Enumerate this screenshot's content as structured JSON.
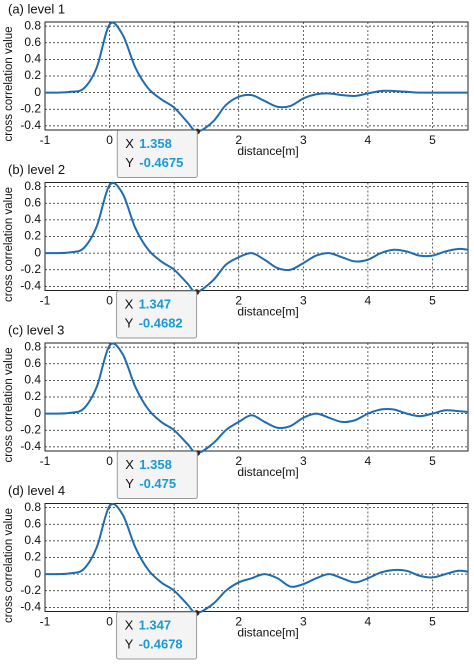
{
  "chart_data": [
    {
      "type": "line",
      "title": "(a) level 1",
      "y_label": "cross correlation value",
      "x_label": "distance[m]",
      "xlim": [
        -1,
        5.55
      ],
      "ylim": [
        -0.45,
        0.85
      ],
      "xticks": [
        -1,
        0,
        1,
        2,
        3,
        4,
        5
      ],
      "yticks": [
        -0.4,
        -0.2,
        0,
        0.2,
        0.4,
        0.6,
        0.8
      ],
      "grid": true,
      "series": [
        {
          "color": "#1f6db0",
          "x": [
            -1,
            -0.8,
            -0.6,
            -0.4,
            -0.2,
            0,
            0.2,
            0.4,
            0.6,
            0.8,
            1.0,
            1.2,
            1.358,
            1.6,
            1.8,
            2.0,
            2.2,
            2.4,
            2.6,
            2.8,
            3.0,
            3.2,
            3.4,
            3.6,
            3.8,
            4.0,
            4.2,
            4.4,
            4.6,
            4.8,
            5.0,
            5.2,
            5.4,
            5.55
          ],
          "values": [
            0,
            0,
            0.01,
            0.05,
            0.3,
            0.82,
            0.7,
            0.3,
            0.05,
            -0.08,
            -0.18,
            -0.35,
            -0.4675,
            -0.35,
            -0.15,
            -0.05,
            -0.03,
            -0.1,
            -0.17,
            -0.16,
            -0.07,
            -0.02,
            -0.01,
            -0.03,
            -0.04,
            -0.01,
            0.02,
            0.02,
            0.01,
            0,
            0,
            0,
            0,
            0
          ]
        }
      ],
      "datatip": {
        "x_label": "X",
        "x": 1.358,
        "y_label": "Y",
        "y": -0.4675,
        "color": "#1a9ad6"
      }
    },
    {
      "type": "line",
      "title": "(b) level 2",
      "y_label": "cross correlation value",
      "x_label": "distance[m]",
      "xlim": [
        -1,
        5.55
      ],
      "ylim": [
        -0.45,
        0.85
      ],
      "xticks": [
        -1,
        0,
        1,
        2,
        3,
        4,
        5
      ],
      "yticks": [
        -0.4,
        -0.2,
        0,
        0.2,
        0.4,
        0.6,
        0.8
      ],
      "grid": true,
      "series": [
        {
          "color": "#1f6db0",
          "x": [
            -1,
            -0.8,
            -0.6,
            -0.4,
            -0.2,
            0,
            0.2,
            0.4,
            0.6,
            0.8,
            1.0,
            1.2,
            1.347,
            1.6,
            1.8,
            2.0,
            2.2,
            2.4,
            2.6,
            2.8,
            3.0,
            3.2,
            3.4,
            3.6,
            3.8,
            4.0,
            4.2,
            4.4,
            4.6,
            4.8,
            5.0,
            5.2,
            5.4,
            5.55
          ],
          "values": [
            0,
            0,
            0.01,
            0.06,
            0.32,
            0.82,
            0.72,
            0.3,
            0.04,
            -0.1,
            -0.2,
            -0.36,
            -0.4682,
            -0.33,
            -0.14,
            -0.05,
            0.0,
            -0.08,
            -0.18,
            -0.2,
            -0.12,
            -0.03,
            0.0,
            -0.05,
            -0.1,
            -0.08,
            0.0,
            0.04,
            0.02,
            -0.03,
            -0.03,
            0.02,
            0.05,
            0.04
          ]
        }
      ],
      "datatip": {
        "x_label": "X",
        "x": 1.347,
        "y_label": "Y",
        "y": -0.4682,
        "color": "#1a9ad6"
      }
    },
    {
      "type": "line",
      "title": "(c) level 3",
      "y_label": "cross correlation value",
      "x_label": "distance[m]",
      "xlim": [
        -1,
        5.55
      ],
      "ylim": [
        -0.45,
        0.85
      ],
      "xticks": [
        -1,
        0,
        1,
        2,
        3,
        4,
        5
      ],
      "yticks": [
        -0.4,
        -0.2,
        0,
        0.2,
        0.4,
        0.6,
        0.8
      ],
      "grid": true,
      "series": [
        {
          "color": "#1f6db0",
          "x": [
            -1,
            -0.8,
            -0.6,
            -0.4,
            -0.2,
            0,
            0.2,
            0.4,
            0.6,
            0.8,
            1.0,
            1.2,
            1.358,
            1.6,
            1.8,
            2.0,
            2.2,
            2.4,
            2.6,
            2.8,
            3.0,
            3.2,
            3.4,
            3.6,
            3.8,
            4.0,
            4.2,
            4.4,
            4.6,
            4.8,
            5.0,
            5.2,
            5.4,
            5.55
          ],
          "values": [
            0,
            0,
            0.01,
            0.06,
            0.32,
            0.82,
            0.72,
            0.32,
            0.05,
            -0.1,
            -0.2,
            -0.36,
            -0.475,
            -0.36,
            -0.2,
            -0.1,
            -0.02,
            -0.1,
            -0.17,
            -0.15,
            -0.05,
            0.0,
            -0.05,
            -0.1,
            -0.08,
            0.0,
            0.05,
            0.05,
            0.0,
            -0.03,
            0.0,
            0.04,
            0.03,
            0.02
          ]
        }
      ],
      "datatip": {
        "x_label": "X",
        "x": 1.358,
        "y_label": "Y",
        "y": -0.475,
        "color": "#1a9ad6"
      }
    },
    {
      "type": "line",
      "title": "(d) level 4",
      "y_label": "cross correlation value",
      "x_label": "distance[m]",
      "xlim": [
        -1,
        5.55
      ],
      "ylim": [
        -0.45,
        0.85
      ],
      "xticks": [
        -1,
        0,
        1,
        2,
        3,
        4,
        5
      ],
      "yticks": [
        -0.4,
        -0.2,
        0,
        0.2,
        0.4,
        0.6,
        0.8
      ],
      "grid": true,
      "series": [
        {
          "color": "#1f6db0",
          "x": [
            -1,
            -0.8,
            -0.6,
            -0.4,
            -0.2,
            0,
            0.2,
            0.4,
            0.6,
            0.8,
            1.0,
            1.2,
            1.347,
            1.6,
            1.8,
            2.0,
            2.2,
            2.4,
            2.6,
            2.8,
            3.0,
            3.2,
            3.4,
            3.6,
            3.8,
            4.0,
            4.2,
            4.4,
            4.6,
            4.8,
            5.0,
            5.2,
            5.4,
            5.55
          ],
          "values": [
            0,
            0,
            0.01,
            0.06,
            0.32,
            0.82,
            0.72,
            0.32,
            0.05,
            -0.1,
            -0.2,
            -0.36,
            -0.4678,
            -0.36,
            -0.2,
            -0.1,
            -0.05,
            0.0,
            -0.05,
            -0.15,
            -0.12,
            -0.05,
            0.0,
            -0.05,
            -0.1,
            -0.05,
            0.02,
            0.05,
            0.04,
            -0.02,
            -0.04,
            0.0,
            0.04,
            0.03
          ]
        }
      ],
      "datatip": {
        "x_label": "X",
        "x": 1.347,
        "y_label": "Y",
        "y": -0.4678,
        "color": "#1a9ad6"
      }
    }
  ]
}
